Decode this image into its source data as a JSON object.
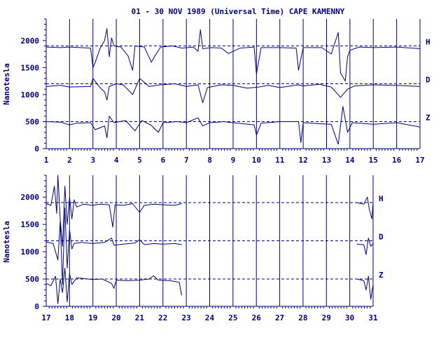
{
  "title": "01 - 30 NOV 1989 (Universal Time) CAPE KAMENNY",
  "colors": {
    "ink": "#000080",
    "background": "#ffffff"
  },
  "chart_data": [
    {
      "type": "line",
      "ylabel": "Nanotesla",
      "ylim": [
        0,
        2400
      ],
      "yticks": [
        0,
        500,
        1000,
        1500,
        2000
      ],
      "xlim": [
        1,
        17
      ],
      "xticks": [
        "1",
        "2",
        "3",
        "4",
        "5",
        "6",
        "7",
        "8",
        "9",
        "10",
        "11",
        "12",
        "13",
        "14",
        "15",
        "16",
        "17"
      ],
      "grid": "vertical at each day",
      "baselines": [
        1900,
        1200,
        500
      ],
      "series": [
        {
          "name": "H",
          "baseline": 1900,
          "values": [
            [
              1,
              1880
            ],
            [
              1.6,
              1870
            ],
            [
              2,
              1880
            ],
            [
              2.9,
              1860
            ],
            [
              3.0,
              1500
            ],
            [
              3.1,
              1600
            ],
            [
              3.3,
              1850
            ],
            [
              3.5,
              2000
            ],
            [
              3.6,
              2220
            ],
            [
              3.7,
              1700
            ],
            [
              3.8,
              2050
            ],
            [
              3.9,
              1900
            ],
            [
              4.2,
              1880
            ],
            [
              4.5,
              1720
            ],
            [
              4.7,
              1450
            ],
            [
              4.8,
              1900
            ],
            [
              5.2,
              1880
            ],
            [
              5.5,
              1600
            ],
            [
              5.7,
              1750
            ],
            [
              5.9,
              1880
            ],
            [
              6.4,
              1900
            ],
            [
              6.8,
              1860
            ],
            [
              7.3,
              1880
            ],
            [
              7.5,
              1800
            ],
            [
              7.6,
              2200
            ],
            [
              7.7,
              1850
            ],
            [
              8.1,
              1870
            ],
            [
              8.5,
              1860
            ],
            [
              8.8,
              1760
            ],
            [
              9.3,
              1860
            ],
            [
              9.9,
              1880
            ],
            [
              10.0,
              1380
            ],
            [
              10.2,
              1870
            ],
            [
              11.0,
              1870
            ],
            [
              11.7,
              1860
            ],
            [
              11.8,
              1450
            ],
            [
              12.0,
              1870
            ],
            [
              12.8,
              1870
            ],
            [
              13.2,
              1750
            ],
            [
              13.5,
              2150
            ],
            [
              13.6,
              1400
            ],
            [
              13.8,
              1250
            ],
            [
              13.9,
              1700
            ],
            [
              14.0,
              1820
            ],
            [
              14.4,
              1880
            ],
            [
              15.0,
              1870
            ],
            [
              16.0,
              1880
            ],
            [
              17.0,
              1850
            ]
          ]
        },
        {
          "name": "D",
          "baseline": 1200,
          "values": [
            [
              1,
              1150
            ],
            [
              1.6,
              1170
            ],
            [
              2,
              1140
            ],
            [
              2.9,
              1150
            ],
            [
              3.0,
              1300
            ],
            [
              3.3,
              1130
            ],
            [
              3.5,
              1050
            ],
            [
              3.6,
              900
            ],
            [
              3.7,
              1150
            ],
            [
              4.0,
              1200
            ],
            [
              4.3,
              1180
            ],
            [
              4.7,
              1000
            ],
            [
              5.0,
              1300
            ],
            [
              5.4,
              1150
            ],
            [
              5.9,
              1180
            ],
            [
              6.5,
              1200
            ],
            [
              7.0,
              1150
            ],
            [
              7.5,
              1180
            ],
            [
              7.7,
              850
            ],
            [
              7.9,
              1130
            ],
            [
              8.5,
              1180
            ],
            [
              9.0,
              1170
            ],
            [
              9.6,
              1120
            ],
            [
              10.1,
              1140
            ],
            [
              10.5,
              1170
            ],
            [
              11.0,
              1130
            ],
            [
              11.8,
              1180
            ],
            [
              12.0,
              1160
            ],
            [
              12.7,
              1190
            ],
            [
              13.2,
              1140
            ],
            [
              13.6,
              950
            ],
            [
              13.9,
              1100
            ],
            [
              14.2,
              1160
            ],
            [
              15.0,
              1180
            ],
            [
              16.0,
              1170
            ],
            [
              17.0,
              1150
            ]
          ]
        },
        {
          "name": "Z",
          "baseline": 500,
          "values": [
            [
              1,
              500
            ],
            [
              1.6,
              490
            ],
            [
              2,
              440
            ],
            [
              2.3,
              470
            ],
            [
              2.9,
              480
            ],
            [
              3.1,
              350
            ],
            [
              3.5,
              420
            ],
            [
              3.6,
              200
            ],
            [
              3.7,
              600
            ],
            [
              3.9,
              480
            ],
            [
              4.4,
              520
            ],
            [
              4.8,
              330
            ],
            [
              5.1,
              520
            ],
            [
              5.5,
              430
            ],
            [
              5.8,
              300
            ],
            [
              6.0,
              480
            ],
            [
              6.6,
              500
            ],
            [
              7.0,
              480
            ],
            [
              7.5,
              570
            ],
            [
              7.7,
              420
            ],
            [
              8.0,
              480
            ],
            [
              8.6,
              500
            ],
            [
              9.2,
              470
            ],
            [
              9.9,
              440
            ],
            [
              10.0,
              250
            ],
            [
              10.2,
              470
            ],
            [
              11.0,
              500
            ],
            [
              11.8,
              500
            ],
            [
              11.9,
              110
            ],
            [
              12.0,
              480
            ],
            [
              12.7,
              460
            ],
            [
              13.2,
              450
            ],
            [
              13.5,
              80
            ],
            [
              13.7,
              780
            ],
            [
              13.9,
              300
            ],
            [
              14.1,
              480
            ],
            [
              15.0,
              450
            ],
            [
              16.0,
              480
            ],
            [
              17.0,
              400
            ]
          ]
        }
      ]
    },
    {
      "type": "line",
      "ylabel": "Nanotesla",
      "ylim": [
        0,
        2400
      ],
      "yticks": [
        0,
        500,
        1000,
        1500,
        2000
      ],
      "xlim": [
        17,
        31
      ],
      "xticks": [
        "17",
        "18",
        "19",
        "20",
        "21",
        "22",
        "23",
        "24",
        "25",
        "26",
        "27",
        "28",
        "29",
        "30",
        "31"
      ],
      "grid": "vertical at each day",
      "baselines": [
        1900,
        1200,
        500
      ],
      "data_gap": [
        22.8,
        30.3
      ],
      "series": [
        {
          "name": "H",
          "baseline": 1900,
          "segments": [
            [
              [
                17,
                1880
              ],
              [
                17.2,
                1850
              ],
              [
                17.35,
                2200
              ],
              [
                17.45,
                1700
              ],
              [
                17.5,
                2400
              ],
              [
                17.6,
                1600
              ],
              [
                17.7,
                1100
              ],
              [
                17.8,
                2200
              ],
              [
                17.9,
                1500
              ],
              [
                18.0,
                2000
              ],
              [
                18.1,
                1600
              ],
              [
                18.2,
                1950
              ],
              [
                18.3,
                1820
              ],
              [
                18.6,
                1870
              ],
              [
                19.0,
                1850
              ],
              [
                19.3,
                1870
              ],
              [
                19.7,
                1860
              ],
              [
                19.85,
                1450
              ],
              [
                19.95,
                1860
              ],
              [
                20.3,
                1850
              ],
              [
                20.7,
                1880
              ],
              [
                21.0,
                1720
              ],
              [
                21.2,
                1850
              ],
              [
                21.6,
                1870
              ],
              [
                22.0,
                1860
              ],
              [
                22.5,
                1850
              ],
              [
                22.8,
                1880
              ]
            ],
            [
              [
                30.3,
                1900
              ],
              [
                30.6,
                1870
              ],
              [
                30.75,
                2000
              ],
              [
                30.85,
                1750
              ],
              [
                30.95,
                1600
              ],
              [
                31.0,
                1900
              ]
            ]
          ]
        },
        {
          "name": "D",
          "baseline": 1200,
          "segments": [
            [
              [
                17,
                1180
              ],
              [
                17.3,
                1150
              ],
              [
                17.5,
                850
              ],
              [
                17.6,
                1550
              ],
              [
                17.7,
                400
              ],
              [
                17.8,
                1800
              ],
              [
                17.9,
                700
              ],
              [
                18.0,
                1400
              ],
              [
                18.1,
                1050
              ],
              [
                18.2,
                1150
              ],
              [
                18.5,
                1170
              ],
              [
                19.0,
                1150
              ],
              [
                19.5,
                1170
              ],
              [
                19.8,
                1250
              ],
              [
                19.9,
                1120
              ],
              [
                20.3,
                1140
              ],
              [
                20.8,
                1160
              ],
              [
                21.0,
                1220
              ],
              [
                21.2,
                1130
              ],
              [
                21.6,
                1150
              ],
              [
                22.0,
                1140
              ],
              [
                22.5,
                1150
              ],
              [
                22.8,
                1130
              ]
            ],
            [
              [
                30.3,
                1140
              ],
              [
                30.6,
                1130
              ],
              [
                30.7,
                950
              ],
              [
                30.8,
                1250
              ],
              [
                30.9,
                1100
              ],
              [
                31.0,
                1150
              ]
            ]
          ]
        },
        {
          "name": "Z",
          "baseline": 500,
          "segments": [
            [
              [
                17,
                420
              ],
              [
                17.2,
                380
              ],
              [
                17.4,
                550
              ],
              [
                17.5,
                50
              ],
              [
                17.6,
                500
              ],
              [
                17.7,
                250
              ],
              [
                17.8,
                700
              ],
              [
                17.9,
                80
              ],
              [
                18.0,
                600
              ],
              [
                18.1,
                400
              ],
              [
                18.3,
                520
              ],
              [
                18.6,
                510
              ],
              [
                19.0,
                490
              ],
              [
                19.4,
                500
              ],
              [
                19.8,
                420
              ],
              [
                19.9,
                330
              ],
              [
                20.0,
                480
              ],
              [
                20.5,
                470
              ],
              [
                21.0,
                480
              ],
              [
                21.4,
                500
              ],
              [
                21.6,
                560
              ],
              [
                21.8,
                480
              ],
              [
                22.3,
                470
              ],
              [
                22.7,
                440
              ],
              [
                22.8,
                200
              ]
            ],
            [
              [
                30.3,
                500
              ],
              [
                30.6,
                470
              ],
              [
                30.7,
                300
              ],
              [
                30.8,
                550
              ],
              [
                30.9,
                130
              ],
              [
                31.0,
                400
              ]
            ]
          ]
        }
      ]
    }
  ]
}
